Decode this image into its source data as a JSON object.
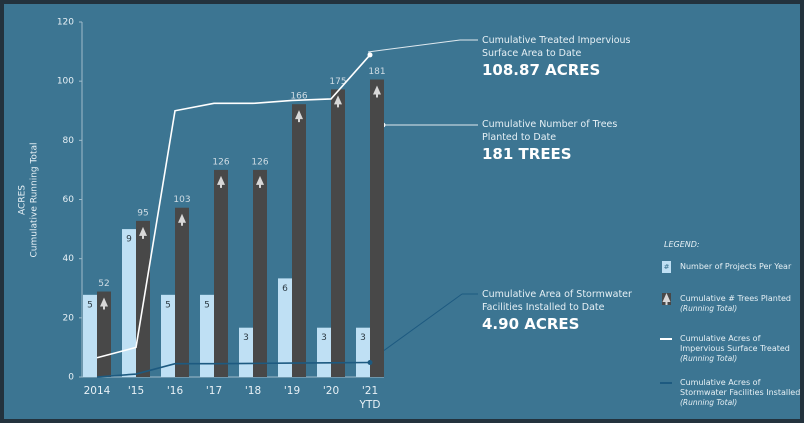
{
  "chart_data": {
    "type": "bar",
    "y_label": [
      "ACRES",
      "Cumulative Running Total"
    ],
    "ylim": [
      0,
      120
    ],
    "yticks": [
      0,
      20,
      40,
      60,
      80,
      100,
      120
    ],
    "categories": [
      "2014",
      "'15",
      "'16",
      "'17",
      "'18",
      "'19",
      "'20",
      "'21"
    ],
    "last_category_note": "YTD",
    "series": [
      {
        "name": "Number of Projects Per Year",
        "type": "bar",
        "color": "#bfe0f4",
        "ylim": [
          0,
          21.6
        ],
        "values": [
          5,
          9,
          5,
          5,
          3,
          6,
          3,
          3
        ]
      },
      {
        "name": "Cumulative # Trees Planted",
        "note": "(Running Total)",
        "type": "bar",
        "color": "#484848",
        "ylim": [
          0,
          216
        ],
        "values": [
          52,
          95,
          103,
          126,
          126,
          166,
          175,
          181
        ]
      },
      {
        "name": "Cumulative Acres of Impervious Surface Treated",
        "note": "(Running Total)",
        "type": "line",
        "color": "#ffffff",
        "values": [
          6.5,
          10,
          90,
          92.5,
          92.5,
          93.5,
          94,
          108.87
        ]
      },
      {
        "name": "Cumulative Acres of Stormwater Facilities Installed",
        "note": "(Running Total)",
        "type": "line",
        "color": "#1d5a80",
        "values": [
          0,
          1,
          4.5,
          4.5,
          4.6,
          4.7,
          4.8,
          4.9
        ]
      }
    ],
    "legend_title": "LEGEND:",
    "annotations": [
      {
        "text": "Cumulative Treated Impervious Surface Area to Date",
        "value": "108.87 ACRES"
      },
      {
        "text": "Cumulative Number of Trees Planted to Date",
        "value": "181 TREES"
      },
      {
        "text": "Cumulative Area of Stormwater Facilities Installed to Date",
        "value": "4.90 ACRES"
      }
    ]
  }
}
